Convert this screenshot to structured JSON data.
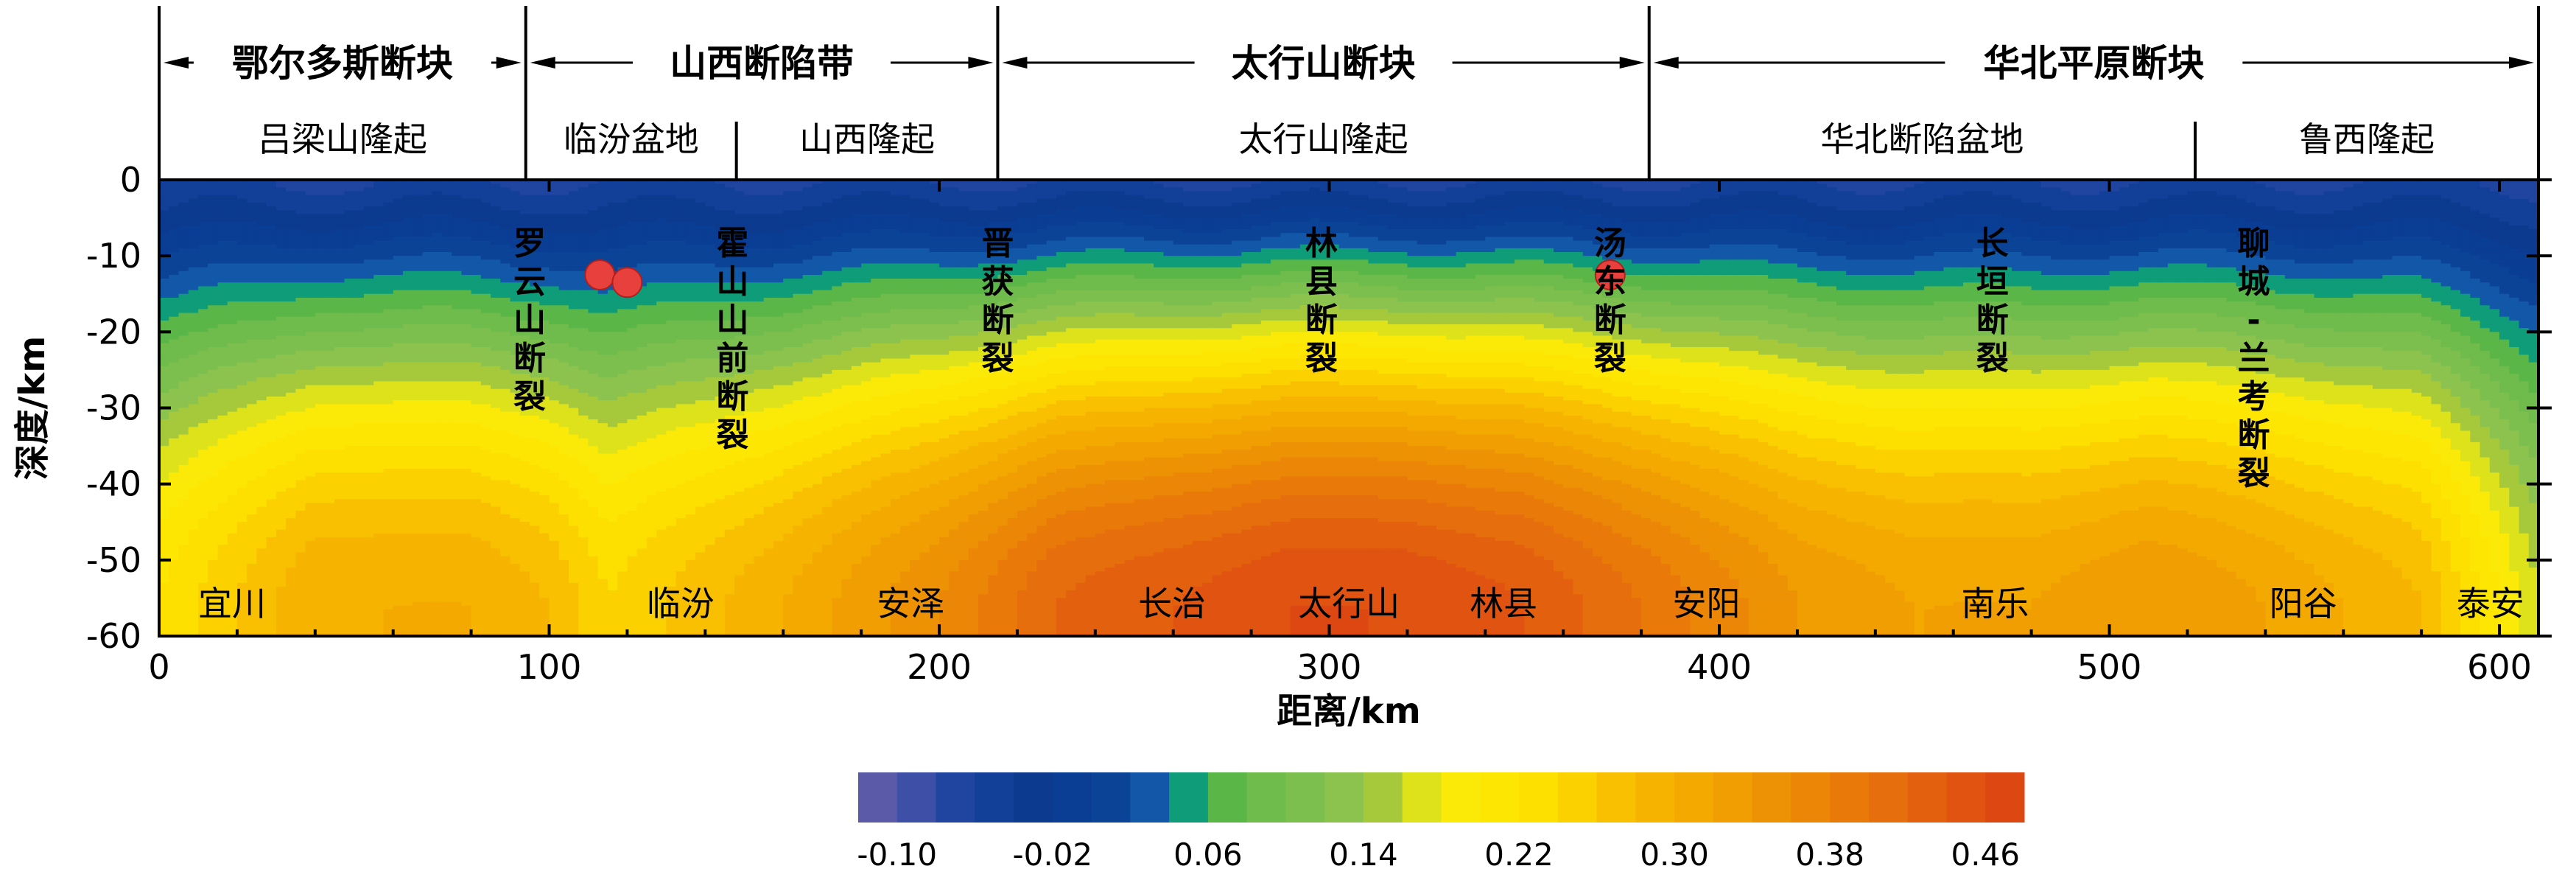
{
  "chart_data": {
    "type": "heatmap",
    "xlabel": "距离/km",
    "ylabel": "深度/km",
    "xlim": [
      0,
      610
    ],
    "ylim": [
      -60,
      0
    ],
    "x_ticks": [
      "0",
      "100",
      "200",
      "300",
      "400",
      "500",
      "600"
    ],
    "y_ticks": [
      "0",
      "-10",
      "-20",
      "-30",
      "-40",
      "-50",
      "-60"
    ],
    "colorbar": {
      "ticks": [
        "-0.10",
        "-0.02",
        "0.06",
        "0.14",
        "0.22",
        "0.30",
        "0.38",
        "0.46"
      ],
      "levels": [
        -0.12,
        -0.1,
        -0.08,
        -0.06,
        -0.04,
        -0.02,
        0.0,
        0.02,
        0.04,
        0.06,
        0.08,
        0.1,
        0.12,
        0.14,
        0.16,
        0.18,
        0.2,
        0.22,
        0.24,
        0.26,
        0.28,
        0.3,
        0.32,
        0.34,
        0.36,
        0.38,
        0.4,
        0.42,
        0.44,
        0.46
      ],
      "colors": [
        "#5a5aa8",
        "#3d4fa6",
        "#1f45a0",
        "#123f97",
        "#0b3a8e",
        "#0a3d94",
        "#0b4396",
        "#1358a8",
        "#0f9c78",
        "#5bb648",
        "#6fbb4c",
        "#7dbf4f",
        "#8cc34f",
        "#a6c93c",
        "#dde21b",
        "#fbe908",
        "#fde702",
        "#fde000",
        "#fbd100",
        "#f8c000",
        "#f6b400",
        "#f3a900",
        "#f19e03",
        "#ee9205",
        "#eb8607",
        "#e97a09",
        "#e66e0c",
        "#e3600e",
        "#e05310",
        "#dd4712"
      ]
    },
    "series": [
      {
        "name": "",
        "x": [
          0,
          40,
          80,
          100,
          115,
          130,
          160,
          200,
          230,
          260,
          290,
          320,
          350,
          380,
          420,
          450,
          480,
          510,
          540,
          580,
          610
        ],
        "value_at_60km": [
          0.22,
          0.3,
          0.3,
          0.28,
          0.24,
          0.26,
          0.3,
          0.36,
          0.42,
          0.44,
          0.46,
          0.46,
          0.44,
          0.4,
          0.34,
          0.32,
          0.32,
          0.34,
          0.32,
          0.28,
          0.16
        ]
      }
    ],
    "tectonic_blocks": [
      {
        "name": "鄂尔多斯断块",
        "x_range": [
          0,
          94
        ]
      },
      {
        "name": "山西断陷带",
        "x_range": [
          94,
          215
        ]
      },
      {
        "name": "太行山断块",
        "x_range": [
          215,
          382
        ]
      },
      {
        "name": "华北平原断块",
        "x_range": [
          382,
          610
        ]
      }
    ],
    "units": [
      {
        "name": "吕梁山隆起",
        "x_range": [
          0,
          94
        ]
      },
      {
        "name": "临汾盆地",
        "x_range": [
          94,
          148
        ]
      },
      {
        "name": "山西隆起",
        "x_range": [
          148,
          215
        ]
      },
      {
        "name": "太行山隆起",
        "x_range": [
          215,
          382
        ]
      },
      {
        "name": "华北断陷盆地",
        "x_range": [
          382,
          522
        ]
      },
      {
        "name": "鲁西隆起",
        "x_range": [
          522,
          610
        ]
      }
    ],
    "faults": [
      {
        "name": "罗云山断裂",
        "x": 95
      },
      {
        "name": "霍山山前断裂",
        "x": 147
      },
      {
        "name": "晋获断裂",
        "x": 215
      },
      {
        "name": "林县断裂",
        "x": 298
      },
      {
        "name": "汤东断裂",
        "x": 372
      },
      {
        "name": "长垣断裂",
        "x": 470
      },
      {
        "name": "聊城-兰考断裂",
        "x": 537
      }
    ],
    "places": [
      {
        "name": "宜川",
        "x": 10
      },
      {
        "name": "临汾",
        "x": 125
      },
      {
        "name": "安泽",
        "x": 184
      },
      {
        "name": "长治",
        "x": 251
      },
      {
        "name": "太行山",
        "x": 292
      },
      {
        "name": "林县",
        "x": 336
      },
      {
        "name": "安阳",
        "x": 388
      },
      {
        "name": "南乐",
        "x": 462
      },
      {
        "name": "阳谷",
        "x": 541
      },
      {
        "name": "泰安",
        "x": 589
      }
    ],
    "earthquakes": [
      {
        "x": 113,
        "depth": -12.5
      },
      {
        "x": 120,
        "depth": -13.5
      },
      {
        "x": 372,
        "depth": -12.5
      }
    ]
  }
}
